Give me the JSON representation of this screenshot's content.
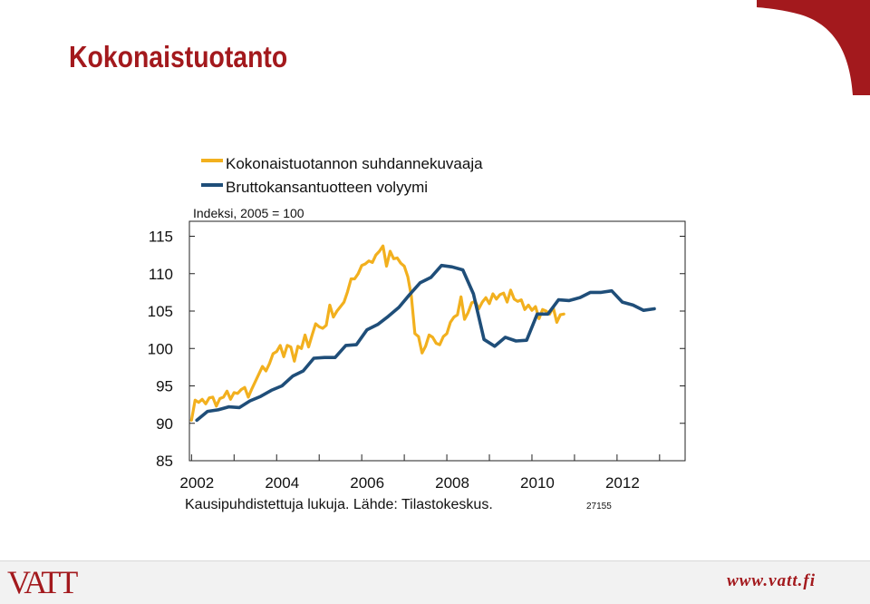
{
  "page": {
    "title": "Kokonaistuotanto",
    "logo_text": "VATT",
    "website": "www.vatt.fi",
    "brand_color": "#a3191d"
  },
  "chart_data": {
    "type": "line",
    "ylabel": "Indeksi, 2005 = 100",
    "ylim": [
      85,
      117
    ],
    "yticks": [
      85,
      90,
      95,
      100,
      105,
      110,
      115
    ],
    "xlim": [
      2001.95,
      2013.6
    ],
    "xticks": [
      2002,
      2004,
      2006,
      2008,
      2010,
      2012
    ],
    "grid": false,
    "legend_position": "top-left",
    "footnote": "Kausipuhdistettuja lukuja. Lähde: Tilastokeskus.",
    "chart_id": "27155",
    "series": [
      {
        "name": "Kokonaistuotannon suhdannekuvaaja",
        "color": "#f2b01e",
        "frequency": "monthly",
        "x_start": 2002.0,
        "values": [
          90.4,
          93.1,
          92.8,
          93.2,
          92.6,
          93.4,
          93.5,
          92.3,
          93.3,
          93.5,
          94.3,
          93.2,
          94.1,
          94.0,
          94.5,
          94.8,
          93.5,
          94.6,
          95.6,
          96.6,
          97.6,
          97.0,
          98.0,
          99.3,
          99.6,
          100.4,
          98.9,
          100.4,
          100.2,
          98.3,
          100.3,
          100.0,
          101.8,
          100.2,
          101.8,
          103.3,
          102.9,
          102.7,
          103.1,
          105.8,
          104.2,
          105.0,
          105.6,
          106.2,
          107.6,
          109.3,
          109.3,
          110.0,
          111.1,
          111.3,
          111.7,
          111.5,
          112.5,
          113.0,
          113.7,
          111.0,
          113.0,
          112.0,
          112.1,
          111.4,
          111.0,
          109.6,
          107.0,
          102.0,
          101.6,
          99.4,
          100.3,
          101.8,
          101.5,
          100.7,
          100.5,
          101.6,
          102.0,
          103.5,
          104.2,
          104.5,
          106.9,
          103.9,
          104.8,
          106.1,
          106.3,
          105.3,
          106.2,
          106.8,
          106.0,
          107.3,
          106.6,
          107.2,
          107.4,
          106.2,
          107.8,
          106.6,
          106.3,
          106.5,
          105.2,
          105.8,
          105.1,
          105.6,
          104.0,
          105.2,
          105.0,
          104.6,
          105.5,
          103.5,
          104.5,
          104.6
        ]
      },
      {
        "name": "Bruttokansantuotteen volyymi",
        "color": "#1f4e79",
        "frequency": "quarterly",
        "x_start": 2002.125,
        "values": [
          90.4,
          91.6,
          91.8,
          92.2,
          92.1,
          93.0,
          93.6,
          94.4,
          95.0,
          96.3,
          97.0,
          98.7,
          98.8,
          98.8,
          100.4,
          100.5,
          102.5,
          103.2,
          104.3,
          105.5,
          107.2,
          108.8,
          109.5,
          111.1,
          110.9,
          110.5,
          107.3,
          101.2,
          100.3,
          101.5,
          101.0,
          101.1,
          104.6,
          104.6,
          106.5,
          106.4,
          106.8,
          107.5,
          107.5,
          107.7,
          106.2,
          105.8,
          105.1,
          105.3
        ]
      }
    ]
  }
}
